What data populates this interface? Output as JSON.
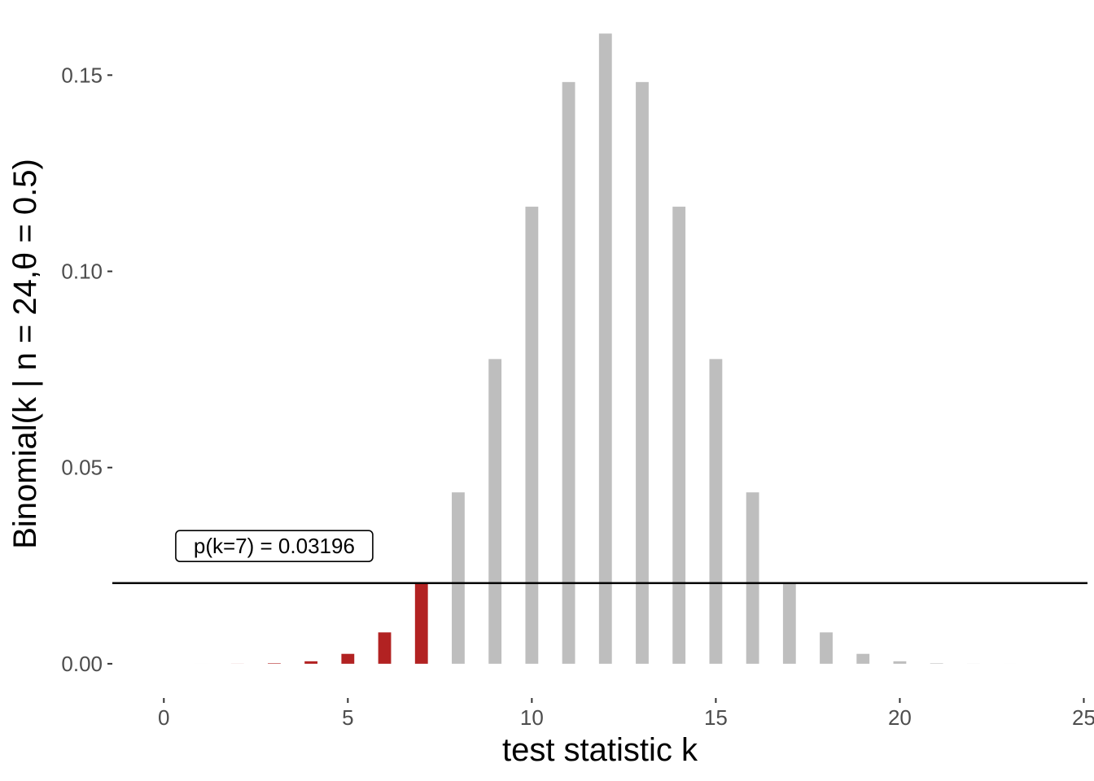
{
  "chart_data": {
    "type": "bar",
    "xlabel": "test statistic k",
    "ylabel": "Binomial(k | n = 24,θ = 0.5)",
    "xlim": [
      -1.4,
      25.1
    ],
    "ylim": [
      -0.005,
      0.165
    ],
    "x_ticks": [
      {
        "value": 0,
        "label": "0"
      },
      {
        "value": 5,
        "label": "5"
      },
      {
        "value": 10,
        "label": "10"
      },
      {
        "value": 15,
        "label": "15"
      },
      {
        "value": 20,
        "label": "20"
      },
      {
        "value": 25,
        "label": "25"
      }
    ],
    "y_ticks": [
      {
        "value": 0,
        "label": "0.00"
      },
      {
        "value": 0.05,
        "label": "0.05"
      },
      {
        "value": 0.1,
        "label": "0.10"
      },
      {
        "value": 0.15,
        "label": "0.15"
      }
    ],
    "k": [
      0,
      1,
      2,
      3,
      4,
      5,
      6,
      7,
      8,
      9,
      10,
      11,
      12,
      13,
      14,
      15,
      16,
      17,
      18,
      19,
      20,
      21,
      22,
      23,
      24
    ],
    "values": [
      1e-07,
      1.4e-06,
      1.64e-05,
      0.0001202,
      0.0006311,
      0.0025243,
      0.0079933,
      0.0205542,
      0.0436776,
      0.077649,
      0.1164735,
      0.148239,
      0.1605922,
      0.148239,
      0.1164735,
      0.077649,
      0.0436776,
      0.0205542,
      0.0079933,
      0.0025243,
      0.0006311,
      0.0001202,
      1.64e-05,
      1.4e-06,
      1e-07
    ],
    "highlight_max_k": 7,
    "colors": {
      "highlight": "#b22222",
      "default": "#bebebe",
      "hline": "#000000"
    },
    "hline_y": 0.0205542,
    "annotation": {
      "text": "p(k=7) = 0.03196",
      "x": 3,
      "y": 0.03
    }
  }
}
